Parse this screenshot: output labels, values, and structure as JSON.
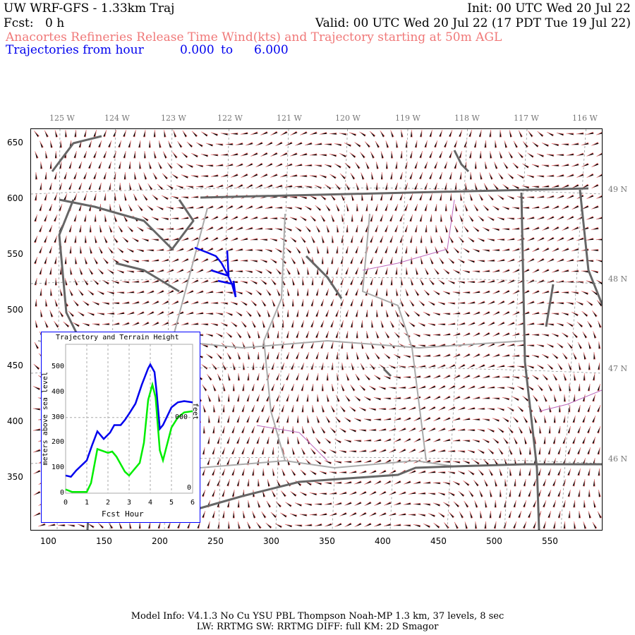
{
  "header": {
    "title": "UW WRF-GFS - 1.33km Traj",
    "init": "Init: 00 UTC Wed 20 Jul 22",
    "fcst_label": "Fcst:",
    "fcst_value": "0 h",
    "valid": "Valid: 00 UTC Wed 20 Jul 22 (17 PDT Tue 19 Jul 22)",
    "subtitle": "Anacortes Refineries Release Time Wind(kts) and Trajectory starting at 50m AGL",
    "traj_label": "Trajectories from hour",
    "traj_from": "0.000",
    "traj_to_word": "to",
    "traj_to": "6.000"
  },
  "colors": {
    "wind_barbs": "#f07878",
    "trajectory": "#0000ee",
    "terrain": "#00ee00",
    "coastline": "#666666",
    "borders": "#aaaaaa",
    "counties": "#bb66bb"
  },
  "map": {
    "x_ticks": [
      "100",
      "150",
      "200",
      "250",
      "300",
      "350",
      "400",
      "450",
      "500",
      "550"
    ],
    "y_ticks": [
      "650",
      "600",
      "550",
      "500",
      "450",
      "400",
      "350"
    ],
    "lon_labels": [
      "125 W",
      "124 W",
      "123 W",
      "122 W",
      "121 W",
      "120 W",
      "119 W",
      "118 W",
      "117 W",
      "116 W"
    ],
    "lat_labels": [
      "49 N",
      "48 N",
      "47 N",
      "46 N"
    ]
  },
  "chart_data": {
    "type": "line",
    "title": "Trajectory and Terrain Height",
    "xlabel": "Fcst Hour",
    "ylabel": "meters above sea level",
    "ylabel_right": "feet",
    "xlim": [
      0,
      6
    ],
    "ylim": [
      0,
      590
    ],
    "x_ticks": [
      "0",
      "1",
      "2",
      "3",
      "4",
      "5",
      "6"
    ],
    "y_ticks": [
      "0",
      "100",
      "200",
      "300",
      "400",
      "500"
    ],
    "right_ticks": [
      "0",
      "000"
    ],
    "grid": true,
    "series": [
      {
        "color": "#0000ee",
        "x": [
          0,
          0.25,
          0.5,
          1,
          1.25,
          1.5,
          1.8,
          2.1,
          2.3,
          2.6,
          2.8,
          3,
          3.3,
          3.6,
          3.9,
          4,
          4.2,
          4.3,
          4.45,
          4.6,
          5,
          5.3,
          5.6,
          6
        ],
        "y": [
          70,
          65,
          90,
          130,
          190,
          245,
          215,
          240,
          270,
          270,
          290,
          315,
          355,
          430,
          495,
          510,
          480,
          400,
          255,
          270,
          340,
          360,
          365,
          360
        ]
      },
      {
        "color": "#00ee00",
        "x": [
          0,
          0.3,
          1,
          1.2,
          1.5,
          2,
          2.2,
          2.4,
          2.8,
          3,
          3.3,
          3.5,
          3.7,
          3.9,
          4.1,
          4.25,
          4.45,
          4.6,
          5,
          5.3,
          5.6,
          6
        ],
        "y": [
          15,
          5,
          5,
          40,
          175,
          160,
          165,
          145,
          85,
          70,
          100,
          120,
          200,
          370,
          430,
          380,
          170,
          130,
          260,
          300,
          320,
          325
        ]
      }
    ]
  },
  "footer": {
    "line1": "Model Info: V4.1.3    No Cu    YSU PBL  Thompson     Noah-MP    1.3 km,  37 levels,     8 sec",
    "line2": "LW: RRTMG SW: RRTMG    DIFF: full    KM: 2D Smagor"
  }
}
